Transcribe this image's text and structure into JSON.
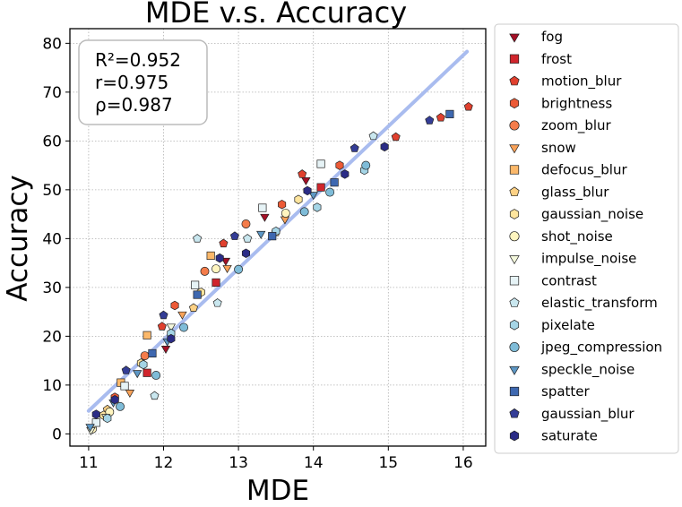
{
  "chart_data": {
    "type": "scatter",
    "title": "MDE  v.s.  Accuracy",
    "xlabel": "MDE",
    "ylabel": "Accuracy",
    "xlim": [
      10.75,
      16.3
    ],
    "ylim": [
      -2.5,
      83
    ],
    "xticks": [
      11,
      12,
      13,
      14,
      15,
      16
    ],
    "yticks": [
      0,
      10,
      20,
      30,
      40,
      50,
      60,
      70,
      80
    ],
    "grid": true,
    "legend_position": "right",
    "stats": [
      "R²=0.952",
      "r=0.975",
      "ρ=0.987"
    ],
    "fit_line": {
      "x": [
        11.0,
        16.05
      ],
      "y": [
        4.7,
        78.3
      ],
      "color": "#a9bcef"
    },
    "series": [
      {
        "name": "fog",
        "marker": "triangle-down",
        "color": "#a50f26",
        "points": [
          [
            12.03,
            17.5
          ],
          [
            12.83,
            35.5
          ],
          [
            13.35,
            44.5
          ],
          [
            13.9,
            52.0
          ]
        ]
      },
      {
        "name": "frost",
        "marker": "square",
        "color": "#d0252c",
        "points": [
          [
            11.78,
            12.5
          ],
          [
            12.7,
            31.0
          ],
          [
            14.1,
            50.5
          ]
        ]
      },
      {
        "name": "motion_blur",
        "marker": "pentagon",
        "color": "#e0402e",
        "points": [
          [
            11.98,
            22.0
          ],
          [
            12.8,
            39.0
          ],
          [
            13.85,
            53.2
          ],
          [
            15.1,
            60.8
          ],
          [
            15.7,
            64.8
          ],
          [
            16.07,
            67.0
          ]
        ]
      },
      {
        "name": "brightness",
        "marker": "hexagon",
        "color": "#ec5a36",
        "points": [
          [
            11.35,
            7.5
          ],
          [
            12.15,
            26.3
          ],
          [
            13.58,
            47.0
          ],
          [
            14.35,
            55.0
          ]
        ]
      },
      {
        "name": "zoom_blur",
        "marker": "circle",
        "color": "#f47c4a",
        "points": [
          [
            11.75,
            16.0
          ],
          [
            12.55,
            33.3
          ],
          [
            13.1,
            43.0
          ]
        ]
      },
      {
        "name": "snow",
        "marker": "triangle-down",
        "color": "#f9a258",
        "points": [
          [
            11.55,
            8.5
          ],
          [
            12.25,
            24.5
          ],
          [
            12.85,
            34.0
          ],
          [
            13.62,
            44.0
          ]
        ]
      },
      {
        "name": "defocus_blur",
        "marker": "square",
        "color": "#fbb86a",
        "points": [
          [
            11.43,
            10.5
          ],
          [
            11.78,
            20.2
          ],
          [
            12.63,
            36.5
          ]
        ]
      },
      {
        "name": "glass_blur",
        "marker": "pentagon",
        "color": "#fdd184",
        "points": [
          [
            11.25,
            5.0
          ],
          [
            12.4,
            25.8
          ],
          [
            13.5,
            41.3
          ]
        ]
      },
      {
        "name": "gaussian_noise",
        "marker": "hexagon",
        "color": "#fee59e",
        "points": [
          [
            11.2,
            3.8
          ],
          [
            11.7,
            14.5
          ],
          [
            12.5,
            29.0
          ],
          [
            13.8,
            48.0
          ]
        ]
      },
      {
        "name": "shot_noise",
        "marker": "circle",
        "color": "#fff5bf",
        "points": [
          [
            11.05,
            1.0
          ],
          [
            11.28,
            4.5
          ],
          [
            12.7,
            33.8
          ],
          [
            13.63,
            45.2
          ]
        ]
      },
      {
        "name": "impulse_noise",
        "marker": "triangle-down",
        "color": "#f4f8dc",
        "points": [
          [
            11.03,
            0.8
          ],
          [
            11.23,
            3.5
          ],
          [
            12.1,
            22.0
          ]
        ]
      },
      {
        "name": "contrast",
        "marker": "square",
        "color": "#e6f3f6",
        "points": [
          [
            11.1,
            2.3
          ],
          [
            11.48,
            9.8
          ],
          [
            12.42,
            30.5
          ],
          [
            13.32,
            46.3
          ],
          [
            14.1,
            55.3
          ]
        ]
      },
      {
        "name": "elastic_transform",
        "marker": "pentagon",
        "color": "#c9e7ef",
        "points": [
          [
            11.88,
            7.8
          ],
          [
            12.45,
            40.0
          ],
          [
            12.72,
            26.8
          ],
          [
            13.12,
            40.0
          ],
          [
            14.8,
            61.0
          ]
        ]
      },
      {
        "name": "pixelate",
        "marker": "hexagon",
        "color": "#a5d5e6",
        "points": [
          [
            11.25,
            3.2
          ],
          [
            11.73,
            14.2
          ],
          [
            12.1,
            20.6
          ],
          [
            13.5,
            41.5
          ],
          [
            14.05,
            46.4
          ],
          [
            14.68,
            54.0
          ]
        ]
      },
      {
        "name": "jpeg_compression",
        "marker": "circle",
        "color": "#7fbcd8",
        "points": [
          [
            11.42,
            5.6
          ],
          [
            11.9,
            12.0
          ],
          [
            12.27,
            21.8
          ],
          [
            13.0,
            33.7
          ],
          [
            13.88,
            45.5
          ],
          [
            14.22,
            49.5
          ],
          [
            14.7,
            55.0
          ]
        ]
      },
      {
        "name": "speckle_noise",
        "marker": "triangle-down",
        "color": "#5d97c5",
        "points": [
          [
            11.02,
            1.5
          ],
          [
            11.33,
            6.5
          ],
          [
            11.65,
            12.5
          ],
          [
            12.05,
            19.0
          ],
          [
            13.3,
            41.0
          ],
          [
            14.0,
            49.0
          ]
        ]
      },
      {
        "name": "spatter",
        "marker": "square",
        "color": "#3e68b0",
        "points": [
          [
            11.85,
            16.5
          ],
          [
            12.45,
            28.5
          ],
          [
            13.45,
            40.5
          ],
          [
            14.28,
            51.5
          ],
          [
            15.82,
            65.5
          ]
        ]
      },
      {
        "name": "gaussian_blur",
        "marker": "pentagon",
        "color": "#343d96",
        "points": [
          [
            11.5,
            13.0
          ],
          [
            12.0,
            24.3
          ],
          [
            12.95,
            40.5
          ],
          [
            14.55,
            58.5
          ],
          [
            15.55,
            64.2
          ]
        ]
      },
      {
        "name": "saturate",
        "marker": "hexagon",
        "color": "#2b2c86",
        "points": [
          [
            11.1,
            4.0
          ],
          [
            11.35,
            7.0
          ],
          [
            12.1,
            19.5
          ],
          [
            12.75,
            36.0
          ],
          [
            13.1,
            37.0
          ],
          [
            13.92,
            49.8
          ],
          [
            14.42,
            53.2
          ],
          [
            14.95,
            58.8
          ]
        ]
      }
    ]
  }
}
